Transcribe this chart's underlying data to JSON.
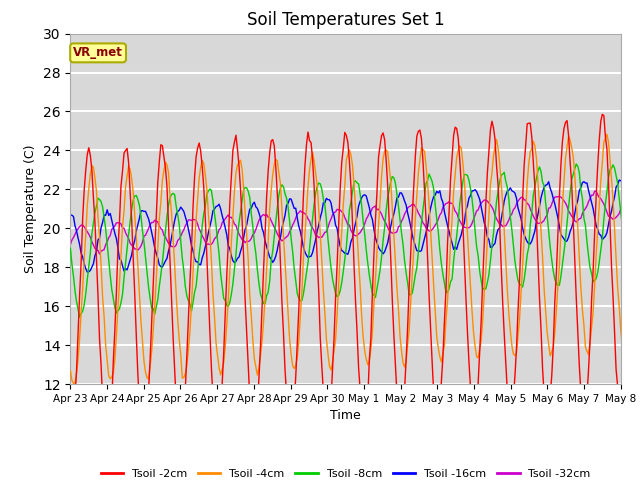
{
  "title": "Soil Temperatures Set 1",
  "xlabel": "Time",
  "ylabel": "Soil Temperature (C)",
  "ylim": [
    12,
    30
  ],
  "yticks": [
    12,
    14,
    16,
    18,
    20,
    22,
    24,
    26,
    28,
    30
  ],
  "annotation": "VR_met",
  "colors": {
    "Tsoil -2cm": "#ff0000",
    "Tsoil -4cm": "#ff8c00",
    "Tsoil -8cm": "#00cc00",
    "Tsoil -16cm": "#0000ff",
    "Tsoil -32cm": "#cc00cc"
  },
  "legend_labels": [
    "Tsoil -2cm",
    "Tsoil -4cm",
    "Tsoil -8cm",
    "Tsoil -16cm",
    "Tsoil -32cm"
  ],
  "num_days": 16,
  "hours_per_day": 24,
  "plot_bg_color": "#d8d8d8",
  "grid_color": "#ffffff",
  "title_fontsize": 12,
  "tick_labels": [
    "Apr 23",
    "Apr 24",
    "Apr 25",
    "Apr 26",
    "Apr 27",
    "Apr 28",
    "Apr 29",
    "Apr 30",
    "May 1",
    "May 2",
    "May 3",
    "May 4",
    "May 5",
    "May 6",
    "May 7",
    "May 8"
  ]
}
